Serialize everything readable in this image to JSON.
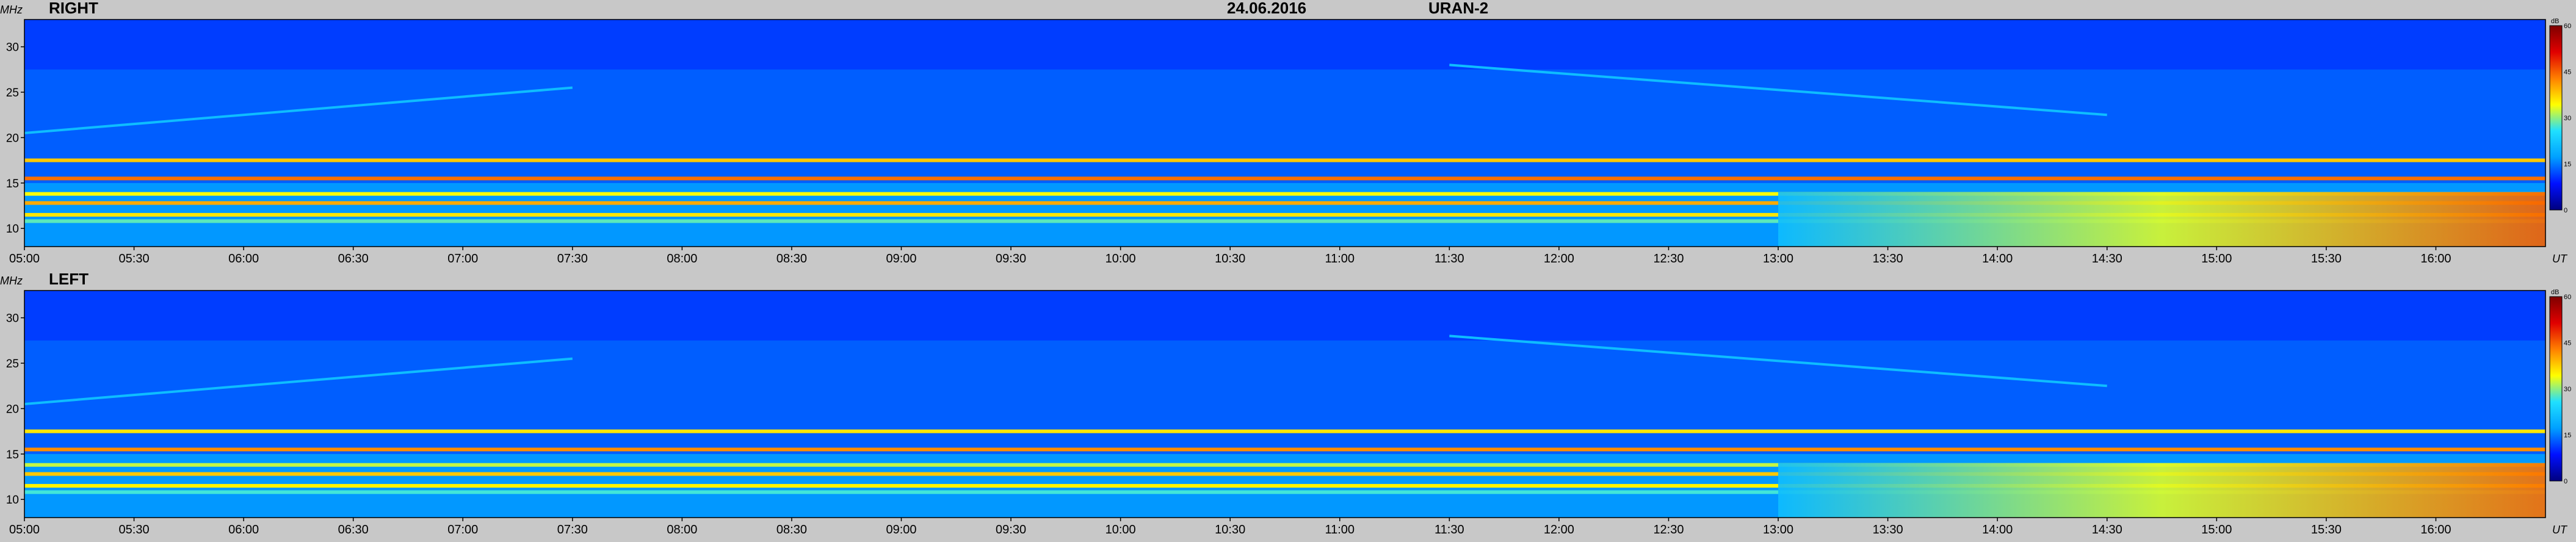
{
  "header": {
    "date": "24.06.2016",
    "instrument": "URAN-2"
  },
  "colors": {
    "background": "#c8c8c8",
    "colormap": [
      "#00007f",
      "#0010ff",
      "#00a0ff",
      "#20e0ff",
      "#ffff00",
      "#ff8000",
      "#e00000",
      "#7f0000"
    ]
  },
  "chart_data": [
    {
      "type": "heatmap",
      "title": "RIGHT",
      "xlabel": "UT",
      "ylabel": "MHz",
      "xlim": [
        "05:00",
        "16:30"
      ],
      "ylim": [
        8,
        33
      ],
      "yticks": [
        10,
        15,
        20,
        25,
        30
      ],
      "xticks": [
        "05:00",
        "05:30",
        "06:00",
        "06:30",
        "07:00",
        "07:30",
        "08:00",
        "08:30",
        "09:00",
        "09:30",
        "10:00",
        "10:30",
        "11:00",
        "11:30",
        "12:00",
        "12:30",
        "13:00",
        "13:30",
        "14:00",
        "14:30",
        "15:00",
        "15:30",
        "16:00"
      ],
      "colorbar": {
        "unit": "dB",
        "ticks": [
          0,
          15,
          30,
          45,
          60
        ],
        "range": [
          0,
          60
        ]
      },
      "features": [
        {
          "kind": "band",
          "freq": 17.5,
          "level": 38
        },
        {
          "kind": "band",
          "freq": 15.5,
          "level": 44
        },
        {
          "kind": "band",
          "freq": 13.8,
          "level": 34
        },
        {
          "kind": "band",
          "freq": 12.8,
          "level": 40
        },
        {
          "kind": "band",
          "freq": 11.5,
          "level": 36
        },
        {
          "kind": "band",
          "freq": 10.8,
          "level": 28
        },
        {
          "kind": "enhancement",
          "time_start": "13:00",
          "time_end": "16:30",
          "freq_start": 8,
          "freq_end": 14,
          "level": 45
        },
        {
          "kind": "drift",
          "time_start": "05:00",
          "time_end": "07:30",
          "freq_start": 20.5,
          "freq_end": 25.5
        },
        {
          "kind": "drift",
          "time_start": "11:30",
          "time_end": "14:30",
          "freq_start": 28.0,
          "freq_end": 22.5
        }
      ]
    },
    {
      "type": "heatmap",
      "title": "LEFT",
      "xlabel": "UT",
      "ylabel": "MHz",
      "xlim": [
        "05:00",
        "16:30"
      ],
      "ylim": [
        8,
        33
      ],
      "yticks": [
        10,
        15,
        20,
        25,
        30
      ],
      "xticks": [
        "05:00",
        "05:30",
        "06:00",
        "06:30",
        "07:00",
        "07:30",
        "08:00",
        "08:30",
        "09:00",
        "09:30",
        "10:00",
        "10:30",
        "11:00",
        "11:30",
        "12:00",
        "12:30",
        "13:00",
        "13:30",
        "14:00",
        "14:30",
        "15:00",
        "15:30",
        "16:00"
      ],
      "colorbar": {
        "unit": "dB",
        "ticks": [
          0,
          15,
          30,
          45,
          60
        ],
        "range": [
          0,
          60
        ]
      },
      "features": [
        {
          "kind": "band",
          "freq": 17.5,
          "level": 36
        },
        {
          "kind": "band",
          "freq": 15.5,
          "level": 42
        },
        {
          "kind": "band",
          "freq": 13.8,
          "level": 32
        },
        {
          "kind": "band",
          "freq": 12.8,
          "level": 38
        },
        {
          "kind": "band",
          "freq": 11.5,
          "level": 35
        },
        {
          "kind": "band",
          "freq": 10.8,
          "level": 27
        },
        {
          "kind": "enhancement",
          "time_start": "13:00",
          "time_end": "16:30",
          "freq_start": 8,
          "freq_end": 14,
          "level": 44
        },
        {
          "kind": "drift",
          "time_start": "05:00",
          "time_end": "07:30",
          "freq_start": 20.5,
          "freq_end": 25.5
        },
        {
          "kind": "drift",
          "time_start": "11:30",
          "time_end": "14:30",
          "freq_start": 28.0,
          "freq_end": 22.5
        }
      ]
    }
  ]
}
